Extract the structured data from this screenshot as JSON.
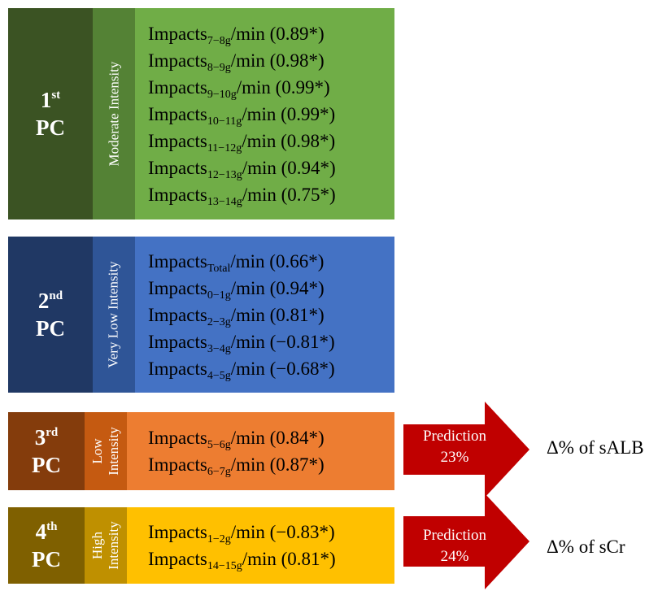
{
  "components": [
    {
      "pc_num": "1",
      "pc_sup": "st",
      "pc_label": "PC",
      "intensity": "Moderate Intensity",
      "colors": {
        "pc": "#3b5323",
        "intensity": "#548235",
        "items": "#70ad47"
      },
      "items": [
        {
          "prefix": "Impacts",
          "sub": "7−8g",
          "suffix": "/min (0.89*)"
        },
        {
          "prefix": "Impacts",
          "sub": "8−9g",
          "suffix": "/min (0.98*)"
        },
        {
          "prefix": "Impacts",
          "sub": "9−10g",
          "suffix": "/min (0.99*)"
        },
        {
          "prefix": "Impacts",
          "sub": "10−11g",
          "suffix": "/min (0.99*)"
        },
        {
          "prefix": "Impacts",
          "sub": "11−12g",
          "suffix": "/min (0.98*)"
        },
        {
          "prefix": "Impacts",
          "sub": "12−13g",
          "suffix": "/min (0.94*)"
        },
        {
          "prefix": "Impacts",
          "sub": "13−14g",
          "suffix": "/min (0.75*)"
        }
      ]
    },
    {
      "pc_num": "2",
      "pc_sup": "nd",
      "pc_label": "PC",
      "intensity": "Very Low Intensity",
      "colors": {
        "pc": "#203864",
        "intensity": "#2f5597",
        "items": "#4472c4"
      },
      "items": [
        {
          "prefix": "Impacts",
          "sub": "Total",
          "suffix": "/min (0.66*)"
        },
        {
          "prefix": "Impacts",
          "sub": "0−1g",
          "suffix": "/min (0.94*)"
        },
        {
          "prefix": "Impacts",
          "sub": "2−3g",
          "suffix": "/min (0.81*)"
        },
        {
          "prefix": "Impacts",
          "sub": "3−4g",
          "suffix": "/min (−0.81*)"
        },
        {
          "prefix": "Impacts",
          "sub": "4−5g",
          "suffix": "/min (−0.68*)"
        }
      ]
    },
    {
      "pc_num": "3",
      "pc_sup": "rd",
      "pc_label": "PC",
      "intensity_lines": [
        "Low",
        "Intensity"
      ],
      "colors": {
        "pc": "#843c0c",
        "intensity": "#c55a11",
        "items": "#ed7d31"
      },
      "items": [
        {
          "prefix": "Impacts",
          "sub": "5−6g",
          "suffix": "/min (0.84*)"
        },
        {
          "prefix": "Impacts",
          "sub": "6−7g",
          "suffix": "/min (0.87*)"
        }
      ],
      "prediction": {
        "label": "Prediction",
        "value": "23%",
        "outcome": "Δ% of sALB"
      }
    },
    {
      "pc_num": "4",
      "pc_sup": "th",
      "pc_label": "PC",
      "intensity_lines": [
        "High",
        "Intensity"
      ],
      "colors": {
        "pc": "#7f6000",
        "intensity": "#bf9000",
        "items": "#ffc000"
      },
      "items": [
        {
          "prefix": "Impacts",
          "sub": "1−2g",
          "suffix": "/min (−0.83*)"
        },
        {
          "prefix": "Impacts",
          "sub": "14−15g",
          "suffix": "/min (0.81*)"
        }
      ],
      "prediction": {
        "label": "Prediction",
        "value": "24%",
        "outcome": "Δ% of sCr"
      }
    }
  ],
  "arrow_color": "#c00000"
}
